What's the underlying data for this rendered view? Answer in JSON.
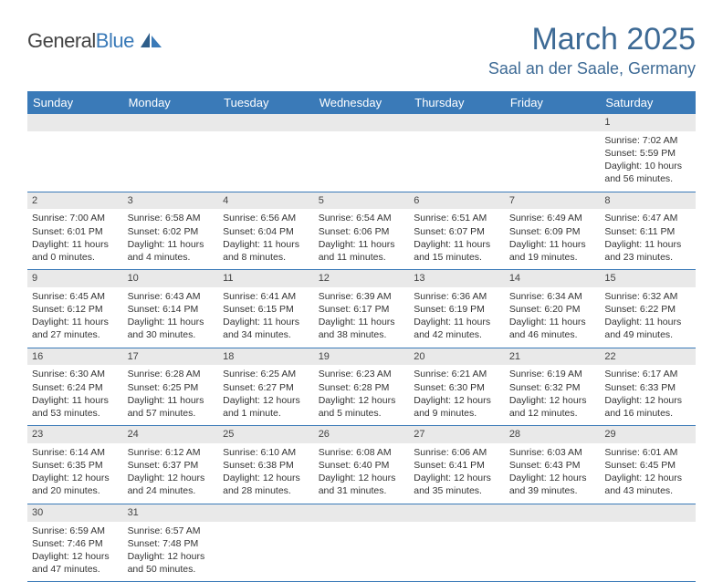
{
  "header": {
    "logo_general": "General",
    "logo_blue": "Blue",
    "title": "March 2025",
    "location": "Saal an der Saale, Germany"
  },
  "colors": {
    "brand_blue": "#3a7ab8",
    "title_blue": "#3d6a95",
    "daynum_bg": "#e9e9e9",
    "text": "#333333"
  },
  "day_headers": [
    "Sunday",
    "Monday",
    "Tuesday",
    "Wednesday",
    "Thursday",
    "Friday",
    "Saturday"
  ],
  "weeks": [
    {
      "nums": [
        "",
        "",
        "",
        "",
        "",
        "",
        "1"
      ],
      "cells": [
        null,
        null,
        null,
        null,
        null,
        null,
        {
          "sunrise": "Sunrise: 7:02 AM",
          "sunset": "Sunset: 5:59 PM",
          "day1": "Daylight: 10 hours",
          "day2": "and 56 minutes."
        }
      ]
    },
    {
      "nums": [
        "2",
        "3",
        "4",
        "5",
        "6",
        "7",
        "8"
      ],
      "cells": [
        {
          "sunrise": "Sunrise: 7:00 AM",
          "sunset": "Sunset: 6:01 PM",
          "day1": "Daylight: 11 hours",
          "day2": "and 0 minutes."
        },
        {
          "sunrise": "Sunrise: 6:58 AM",
          "sunset": "Sunset: 6:02 PM",
          "day1": "Daylight: 11 hours",
          "day2": "and 4 minutes."
        },
        {
          "sunrise": "Sunrise: 6:56 AM",
          "sunset": "Sunset: 6:04 PM",
          "day1": "Daylight: 11 hours",
          "day2": "and 8 minutes."
        },
        {
          "sunrise": "Sunrise: 6:54 AM",
          "sunset": "Sunset: 6:06 PM",
          "day1": "Daylight: 11 hours",
          "day2": "and 11 minutes."
        },
        {
          "sunrise": "Sunrise: 6:51 AM",
          "sunset": "Sunset: 6:07 PM",
          "day1": "Daylight: 11 hours",
          "day2": "and 15 minutes."
        },
        {
          "sunrise": "Sunrise: 6:49 AM",
          "sunset": "Sunset: 6:09 PM",
          "day1": "Daylight: 11 hours",
          "day2": "and 19 minutes."
        },
        {
          "sunrise": "Sunrise: 6:47 AM",
          "sunset": "Sunset: 6:11 PM",
          "day1": "Daylight: 11 hours",
          "day2": "and 23 minutes."
        }
      ]
    },
    {
      "nums": [
        "9",
        "10",
        "11",
        "12",
        "13",
        "14",
        "15"
      ],
      "cells": [
        {
          "sunrise": "Sunrise: 6:45 AM",
          "sunset": "Sunset: 6:12 PM",
          "day1": "Daylight: 11 hours",
          "day2": "and 27 minutes."
        },
        {
          "sunrise": "Sunrise: 6:43 AM",
          "sunset": "Sunset: 6:14 PM",
          "day1": "Daylight: 11 hours",
          "day2": "and 30 minutes."
        },
        {
          "sunrise": "Sunrise: 6:41 AM",
          "sunset": "Sunset: 6:15 PM",
          "day1": "Daylight: 11 hours",
          "day2": "and 34 minutes."
        },
        {
          "sunrise": "Sunrise: 6:39 AM",
          "sunset": "Sunset: 6:17 PM",
          "day1": "Daylight: 11 hours",
          "day2": "and 38 minutes."
        },
        {
          "sunrise": "Sunrise: 6:36 AM",
          "sunset": "Sunset: 6:19 PM",
          "day1": "Daylight: 11 hours",
          "day2": "and 42 minutes."
        },
        {
          "sunrise": "Sunrise: 6:34 AM",
          "sunset": "Sunset: 6:20 PM",
          "day1": "Daylight: 11 hours",
          "day2": "and 46 minutes."
        },
        {
          "sunrise": "Sunrise: 6:32 AM",
          "sunset": "Sunset: 6:22 PM",
          "day1": "Daylight: 11 hours",
          "day2": "and 49 minutes."
        }
      ]
    },
    {
      "nums": [
        "16",
        "17",
        "18",
        "19",
        "20",
        "21",
        "22"
      ],
      "cells": [
        {
          "sunrise": "Sunrise: 6:30 AM",
          "sunset": "Sunset: 6:24 PM",
          "day1": "Daylight: 11 hours",
          "day2": "and 53 minutes."
        },
        {
          "sunrise": "Sunrise: 6:28 AM",
          "sunset": "Sunset: 6:25 PM",
          "day1": "Daylight: 11 hours",
          "day2": "and 57 minutes."
        },
        {
          "sunrise": "Sunrise: 6:25 AM",
          "sunset": "Sunset: 6:27 PM",
          "day1": "Daylight: 12 hours",
          "day2": "and 1 minute."
        },
        {
          "sunrise": "Sunrise: 6:23 AM",
          "sunset": "Sunset: 6:28 PM",
          "day1": "Daylight: 12 hours",
          "day2": "and 5 minutes."
        },
        {
          "sunrise": "Sunrise: 6:21 AM",
          "sunset": "Sunset: 6:30 PM",
          "day1": "Daylight: 12 hours",
          "day2": "and 9 minutes."
        },
        {
          "sunrise": "Sunrise: 6:19 AM",
          "sunset": "Sunset: 6:32 PM",
          "day1": "Daylight: 12 hours",
          "day2": "and 12 minutes."
        },
        {
          "sunrise": "Sunrise: 6:17 AM",
          "sunset": "Sunset: 6:33 PM",
          "day1": "Daylight: 12 hours",
          "day2": "and 16 minutes."
        }
      ]
    },
    {
      "nums": [
        "23",
        "24",
        "25",
        "26",
        "27",
        "28",
        "29"
      ],
      "cells": [
        {
          "sunrise": "Sunrise: 6:14 AM",
          "sunset": "Sunset: 6:35 PM",
          "day1": "Daylight: 12 hours",
          "day2": "and 20 minutes."
        },
        {
          "sunrise": "Sunrise: 6:12 AM",
          "sunset": "Sunset: 6:37 PM",
          "day1": "Daylight: 12 hours",
          "day2": "and 24 minutes."
        },
        {
          "sunrise": "Sunrise: 6:10 AM",
          "sunset": "Sunset: 6:38 PM",
          "day1": "Daylight: 12 hours",
          "day2": "and 28 minutes."
        },
        {
          "sunrise": "Sunrise: 6:08 AM",
          "sunset": "Sunset: 6:40 PM",
          "day1": "Daylight: 12 hours",
          "day2": "and 31 minutes."
        },
        {
          "sunrise": "Sunrise: 6:06 AM",
          "sunset": "Sunset: 6:41 PM",
          "day1": "Daylight: 12 hours",
          "day2": "and 35 minutes."
        },
        {
          "sunrise": "Sunrise: 6:03 AM",
          "sunset": "Sunset: 6:43 PM",
          "day1": "Daylight: 12 hours",
          "day2": "and 39 minutes."
        },
        {
          "sunrise": "Sunrise: 6:01 AM",
          "sunset": "Sunset: 6:45 PM",
          "day1": "Daylight: 12 hours",
          "day2": "and 43 minutes."
        }
      ]
    },
    {
      "nums": [
        "30",
        "31",
        "",
        "",
        "",
        "",
        ""
      ],
      "cells": [
        {
          "sunrise": "Sunrise: 6:59 AM",
          "sunset": "Sunset: 7:46 PM",
          "day1": "Daylight: 12 hours",
          "day2": "and 47 minutes."
        },
        {
          "sunrise": "Sunrise: 6:57 AM",
          "sunset": "Sunset: 7:48 PM",
          "day1": "Daylight: 12 hours",
          "day2": "and 50 minutes."
        },
        null,
        null,
        null,
        null,
        null
      ]
    }
  ]
}
